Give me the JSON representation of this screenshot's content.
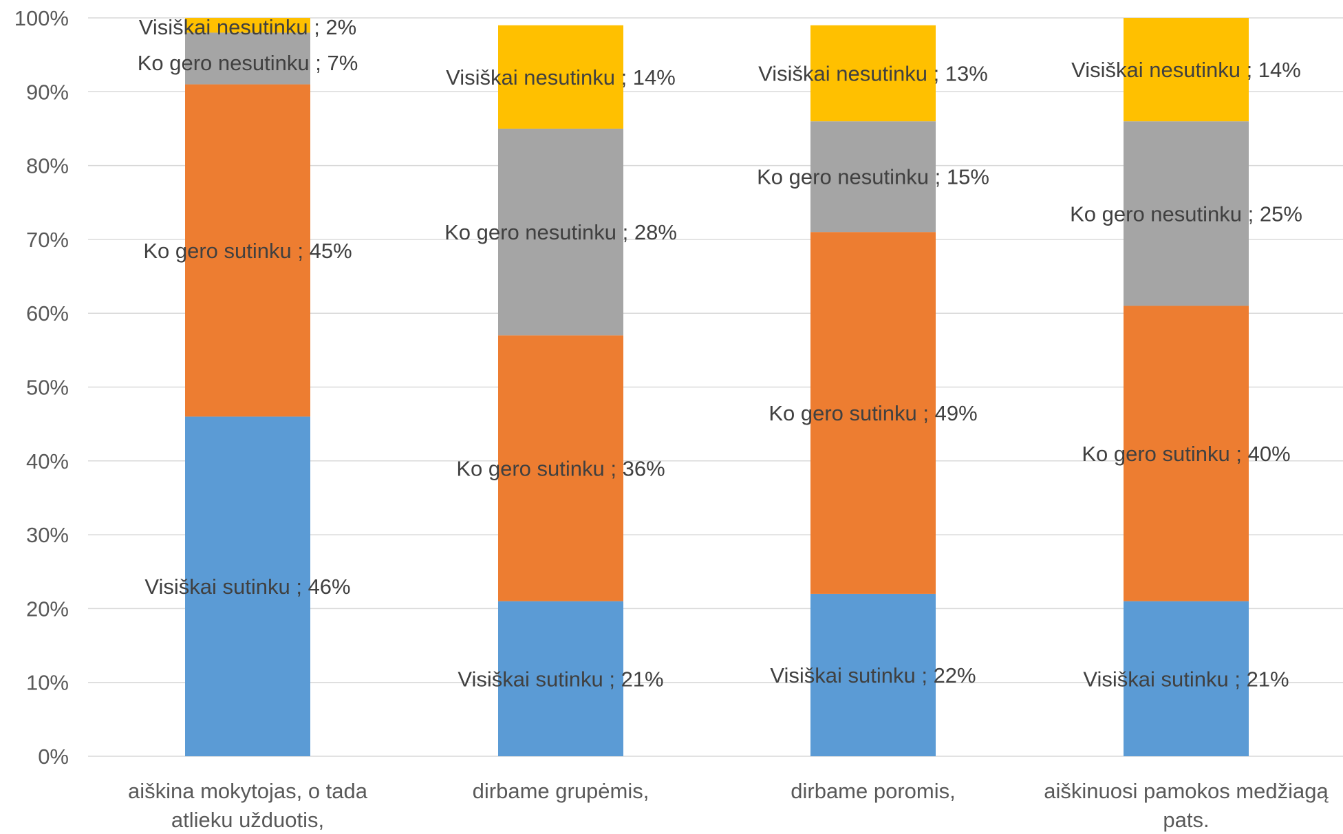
{
  "chart_data": {
    "type": "bar",
    "stacked": true,
    "percent_stacked": true,
    "categories": [
      [
        "aiškina mokytojas, o tada",
        "atlieku užduotis,"
      ],
      [
        "dirbame grupėmis,"
      ],
      [
        "dirbame poromis,"
      ],
      [
        "aiškinuosi pamokos medžiagą",
        "pats."
      ]
    ],
    "series": [
      {
        "name": "Visiškai sutinku",
        "color": "#5b9bd5",
        "values": [
          46,
          21,
          22,
          21
        ]
      },
      {
        "name": "Ko gero sutinku",
        "color": "#ed7d31",
        "values": [
          45,
          36,
          49,
          40
        ]
      },
      {
        "name": "Ko gero nesutinku",
        "color": "#a5a5a5",
        "values": [
          7,
          28,
          15,
          25
        ]
      },
      {
        "name": "Visiškai nesutinku",
        "color": "#ffc000",
        "values": [
          2,
          14,
          13,
          14
        ]
      }
    ],
    "data_label_format": "{series} ; {value}%",
    "y_ticks": [
      "0%",
      "10%",
      "20%",
      "30%",
      "40%",
      "50%",
      "60%",
      "70%",
      "80%",
      "90%",
      "100%"
    ],
    "ylim": [
      0,
      100
    ],
    "grid": true,
    "legend": "none",
    "title": "",
    "xlabel": "",
    "ylabel": ""
  }
}
